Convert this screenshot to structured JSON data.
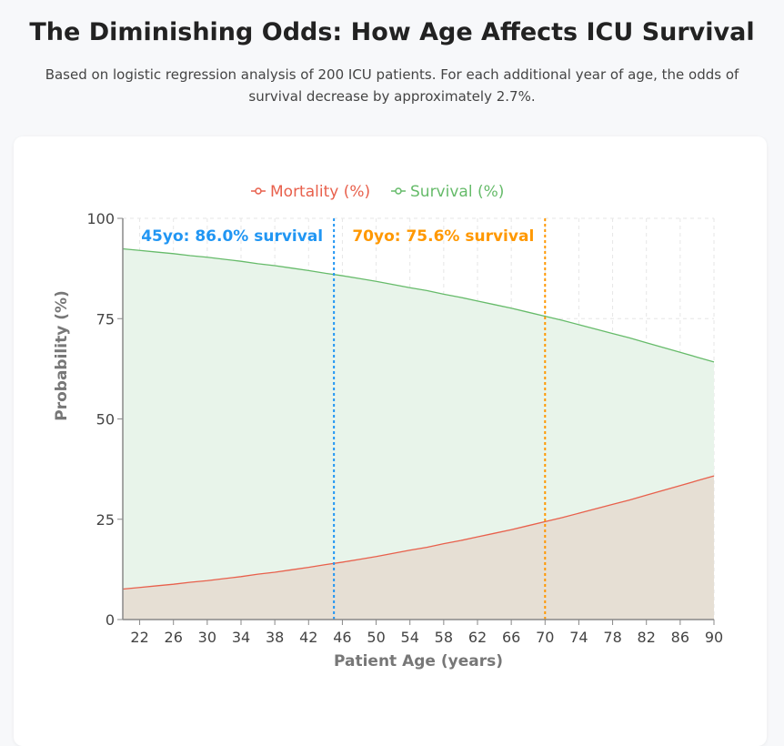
{
  "header": {
    "title": "The Diminishing Odds: How Age Affects ICU Survival",
    "subtitle": "Based on logistic regression analysis of 200 ICU patients. For each additional year of age, the odds of survival decrease by approximately 2.7%."
  },
  "chart_data": {
    "type": "area",
    "title": "",
    "xlabel": "Patient Age (years)",
    "ylabel": "Probability (%)",
    "xlim": [
      20,
      90
    ],
    "ylim": [
      0,
      100
    ],
    "x_ticks": [
      22,
      26,
      30,
      34,
      38,
      42,
      46,
      50,
      54,
      58,
      62,
      66,
      70,
      74,
      78,
      82,
      86,
      90
    ],
    "y_ticks": [
      0,
      25,
      50,
      75,
      100
    ],
    "grid": true,
    "legend_position": "top",
    "x": [
      20,
      22,
      24,
      26,
      28,
      30,
      32,
      34,
      36,
      38,
      40,
      42,
      44,
      46,
      48,
      50,
      52,
      54,
      56,
      58,
      60,
      62,
      64,
      66,
      68,
      70,
      72,
      74,
      76,
      78,
      80,
      82,
      84,
      86,
      88,
      90
    ],
    "series": [
      {
        "name": "Mortality (%)",
        "color": "#e8604c",
        "fill": "#e6dfd4",
        "values": [
          7.6,
          8.0,
          8.4,
          8.8,
          9.3,
          9.7,
          10.2,
          10.7,
          11.3,
          11.8,
          12.4,
          13.0,
          13.7,
          14.3,
          15.0,
          15.7,
          16.5,
          17.3,
          18.0,
          18.9,
          19.7,
          20.6,
          21.5,
          22.4,
          23.4,
          24.4,
          25.4,
          26.5,
          27.6,
          28.7,
          29.8,
          31.0,
          32.2,
          33.4,
          34.6,
          35.8
        ]
      },
      {
        "name": "Survival (%)",
        "color": "#66bb6a",
        "fill": "#e8f4ea",
        "values": [
          92.4,
          92.0,
          91.6,
          91.2,
          90.7,
          90.3,
          89.8,
          89.3,
          88.7,
          88.2,
          87.6,
          87.0,
          86.3,
          85.7,
          85.0,
          84.3,
          83.5,
          82.7,
          82.0,
          81.1,
          80.3,
          79.4,
          78.5,
          77.6,
          76.6,
          75.6,
          74.6,
          73.5,
          72.4,
          71.3,
          70.2,
          69.0,
          67.8,
          66.6,
          65.4,
          64.2
        ]
      }
    ],
    "annotations": [
      {
        "x": 45,
        "label": "45yo: 86.0% survival",
        "color": "#2196f3"
      },
      {
        "x": 70,
        "label": "70yo: 75.6% survival",
        "color": "#ff9800"
      }
    ]
  }
}
